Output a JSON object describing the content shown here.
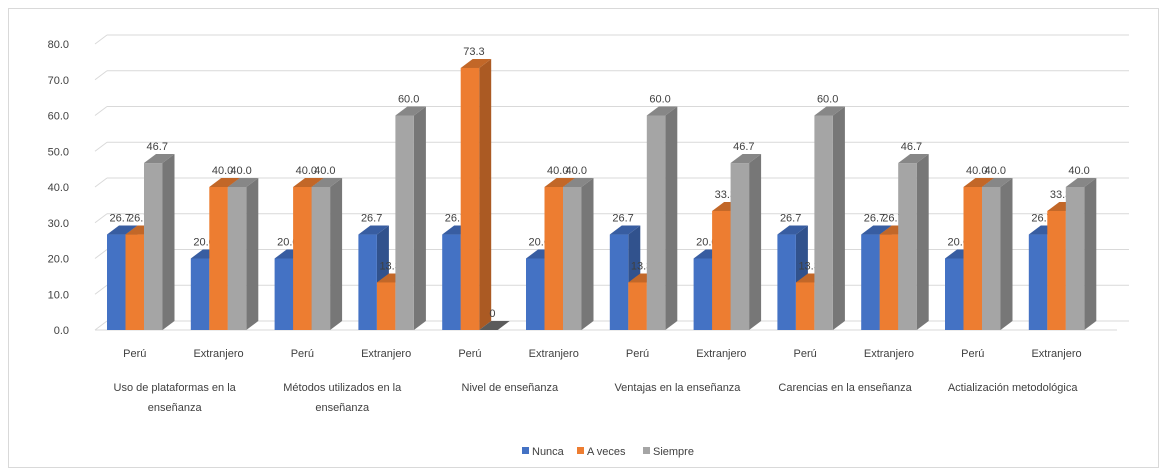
{
  "chart_data": {
    "type": "bar",
    "title": "",
    "xlabel": "",
    "ylabel": "",
    "ylim": [
      0,
      80
    ],
    "yticks": [
      "0.0",
      "10.0",
      "20.0",
      "30.0",
      "40.0",
      "50.0",
      "60.0",
      "70.0",
      "80.0"
    ],
    "grid": true,
    "legend_position": "bottom",
    "groups": [
      {
        "label": "Uso de plataformas en la enseñanza",
        "lines": [
          "Uso de plataformas en la",
          "enseñanza"
        ],
        "categories": [
          "Perú",
          "Extranjero"
        ]
      },
      {
        "label": "Métodos utilizados en la enseñanza",
        "lines": [
          "Métodos utilizados en la",
          "enseñanza"
        ],
        "categories": [
          "Perú",
          "Extranjero"
        ]
      },
      {
        "label": "Nivel de enseñanza",
        "lines": [
          "Nivel de enseñanza"
        ],
        "categories": [
          "Perú",
          "Extranjero"
        ]
      },
      {
        "label": "Ventajas en la enseñanza",
        "lines": [
          "Ventajas en la enseñanza"
        ],
        "categories": [
          "Perú",
          "Extranjero"
        ]
      },
      {
        "label": "Carencias en la enseñanza",
        "lines": [
          "Carencias en la enseñanza"
        ],
        "categories": [
          "Perú",
          "Extranjero"
        ]
      },
      {
        "label": "Actialización metodológica",
        "lines": [
          "Actialización metodológica"
        ],
        "categories": [
          "Perú",
          "Extranjero"
        ]
      }
    ],
    "series": [
      {
        "name": "Nunca",
        "color": "#4472c4",
        "values": [
          26.7,
          20.0,
          20.0,
          26.7,
          26.7,
          20.0,
          26.7,
          20.0,
          26.7,
          26.7,
          20.0,
          26.7
        ],
        "labels": [
          "26.7",
          "20.0",
          "20.0",
          "26.7",
          "26.7",
          "20.0",
          "26.7",
          "20.0",
          "26.7",
          "26.7",
          "20.0",
          "26.7"
        ]
      },
      {
        "name": "A veces",
        "color": "#ed7d31",
        "values": [
          26.7,
          40.0,
          40.0,
          13.3,
          73.3,
          40.0,
          13.3,
          33.3,
          13.3,
          26.7,
          40.0,
          33.3
        ],
        "labels": [
          "26.7",
          "40.0",
          "40.0",
          "13.3",
          "73.3",
          "40.0",
          "13.3",
          "33.3",
          "13.3",
          "26.7",
          "40.0",
          "33.3"
        ]
      },
      {
        "name": "Siempre",
        "color": "#a5a5a5",
        "values": [
          46.7,
          40.0,
          40.0,
          60.0,
          0,
          40.0,
          60.0,
          46.7,
          60.0,
          46.7,
          40.0,
          40.0
        ],
        "labels": [
          "46.7",
          "40.0",
          "40.0",
          "60.0",
          "0",
          "40.0",
          "60.0",
          "46.7",
          "60.0",
          "46.7",
          "40.0",
          "40.0"
        ]
      }
    ]
  }
}
